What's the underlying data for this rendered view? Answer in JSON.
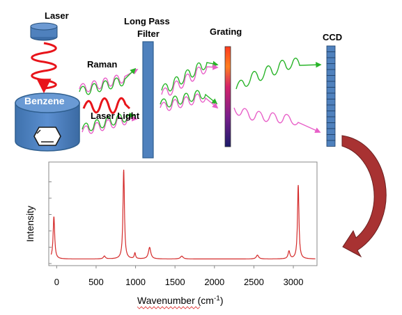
{
  "labels": {
    "laser": "Laser",
    "benzene": "Benzene",
    "raman": "Raman",
    "laser_light": "Laser Light",
    "filter_line1": "Long Pass",
    "filter_line2": "Filter",
    "grating": "Grating",
    "ccd": "CCD"
  },
  "colors": {
    "laser_beam": "#e8141a",
    "raman_wave": "#28b428",
    "scatter_wave": "#e85fc8",
    "spectrum_line": "#d42a2a",
    "component_blue": "#4f81bd",
    "component_border": "#2f5f8f",
    "return_arrow": "#a83232"
  },
  "chart_data": {
    "type": "line",
    "xlabel": "Wavenumber (cm-1)",
    "ylabel": "Intensity",
    "xlim": [
      -100,
      3300
    ],
    "ylim": [
      0,
      1
    ],
    "xticks": [
      "0",
      "500",
      "1000",
      "1500",
      "2000",
      "2500",
      "3000"
    ],
    "xtick_values": [
      0,
      500,
      1000,
      1500,
      2000,
      2500,
      3000
    ],
    "baseline": 0.04,
    "peaks": [
      {
        "x": -35,
        "height": 0.44,
        "width": 12
      },
      {
        "x": 605,
        "height": 0.03,
        "width": 15
      },
      {
        "x": 850,
        "height": 0.93,
        "width": 11
      },
      {
        "x": 992,
        "height": 0.06,
        "width": 10
      },
      {
        "x": 1178,
        "height": 0.12,
        "width": 18
      },
      {
        "x": 1586,
        "height": 0.03,
        "width": 20
      },
      {
        "x": 2545,
        "height": 0.04,
        "width": 18
      },
      {
        "x": 2945,
        "height": 0.08,
        "width": 14
      },
      {
        "x": 3062,
        "height": 0.77,
        "width": 11
      }
    ]
  }
}
